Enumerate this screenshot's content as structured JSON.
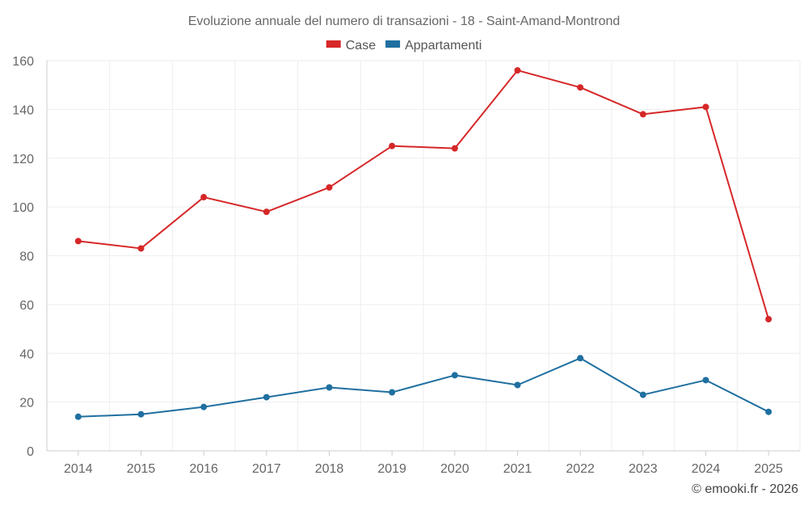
{
  "chart_data": {
    "type": "line",
    "title": "Evoluzione annuale del numero di transazioni - 18 - Saint-Amand-Montrond",
    "xlabel": "",
    "ylabel": "",
    "categories": [
      "2014",
      "2015",
      "2016",
      "2017",
      "2018",
      "2019",
      "2020",
      "2021",
      "2022",
      "2023",
      "2024",
      "2025"
    ],
    "ylim": [
      0,
      160
    ],
    "yticks": [
      0,
      20,
      40,
      60,
      80,
      100,
      120,
      140,
      160
    ],
    "grid": true,
    "legend_position": "top-center",
    "series": [
      {
        "name": "Case",
        "color": "#d62728",
        "values": [
          86,
          83,
          104,
          98,
          108,
          125,
          124,
          156,
          149,
          138,
          141,
          54
        ]
      },
      {
        "name": "Appartamenti",
        "color": "#1f6fa0",
        "values": [
          14,
          15,
          18,
          22,
          26,
          24,
          31,
          27,
          38,
          23,
          29,
          16
        ]
      }
    ]
  },
  "credit": "© emooki.fr - 2026"
}
